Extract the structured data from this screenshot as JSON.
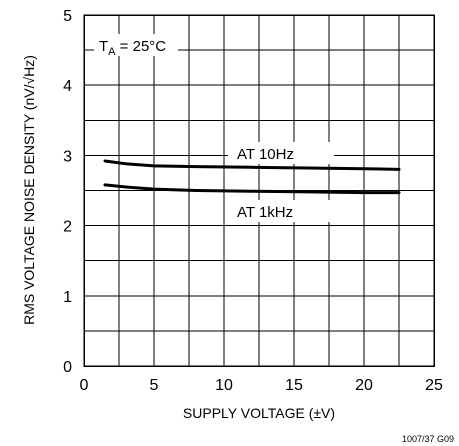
{
  "chart_data": {
    "type": "line",
    "xlabel": "SUPPLY VOLTAGE (±V)",
    "ylabel": "RMS VOLTAGE NOISE DENSITY (nV/√Hz)",
    "xlim": [
      0,
      25
    ],
    "ylim": [
      0,
      5
    ],
    "x_ticks": [
      "0",
      "5",
      "10",
      "15",
      "20",
      "25"
    ],
    "y_ticks": [
      "0",
      "1",
      "2",
      "3",
      "4",
      "5"
    ],
    "grid": true,
    "condition": {
      "main": "T",
      "sub": "A",
      "rest": " = 25°C"
    },
    "figure_id": "1007/37 G09",
    "series": [
      {
        "name": "AT 10Hz",
        "x": [
          1.5,
          3,
          5,
          8,
          12,
          16,
          20,
          22.5
        ],
        "y": [
          2.92,
          2.88,
          2.85,
          2.84,
          2.83,
          2.82,
          2.81,
          2.8
        ]
      },
      {
        "name": "AT 1kHz",
        "x": [
          1.5,
          3,
          5,
          8,
          12,
          16,
          20,
          22.5
        ],
        "y": [
          2.58,
          2.55,
          2.52,
          2.5,
          2.49,
          2.48,
          2.47,
          2.47
        ]
      }
    ]
  }
}
